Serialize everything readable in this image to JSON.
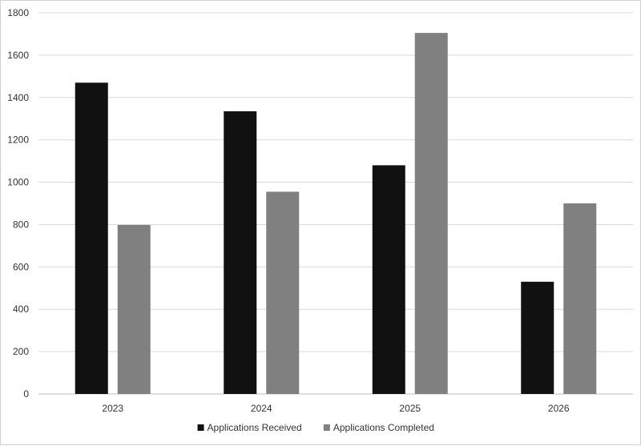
{
  "chart_data": {
    "type": "bar",
    "categories": [
      "2023",
      "2024",
      "2025",
      "2026"
    ],
    "series": [
      {
        "name": "Applications Received",
        "values": [
          1470,
          1335,
          1080,
          530
        ],
        "color": "#111111"
      },
      {
        "name": "Applications Completed",
        "values": [
          798,
          955,
          1705,
          900
        ],
        "color": "#808080"
      }
    ],
    "ylim": [
      0,
      1800
    ],
    "yticks": [
      0,
      200,
      400,
      600,
      800,
      1000,
      1200,
      1400,
      1600,
      1800
    ],
    "grid": true,
    "legend_position": "bottom",
    "title": "",
    "xlabel": "",
    "ylabel": ""
  }
}
